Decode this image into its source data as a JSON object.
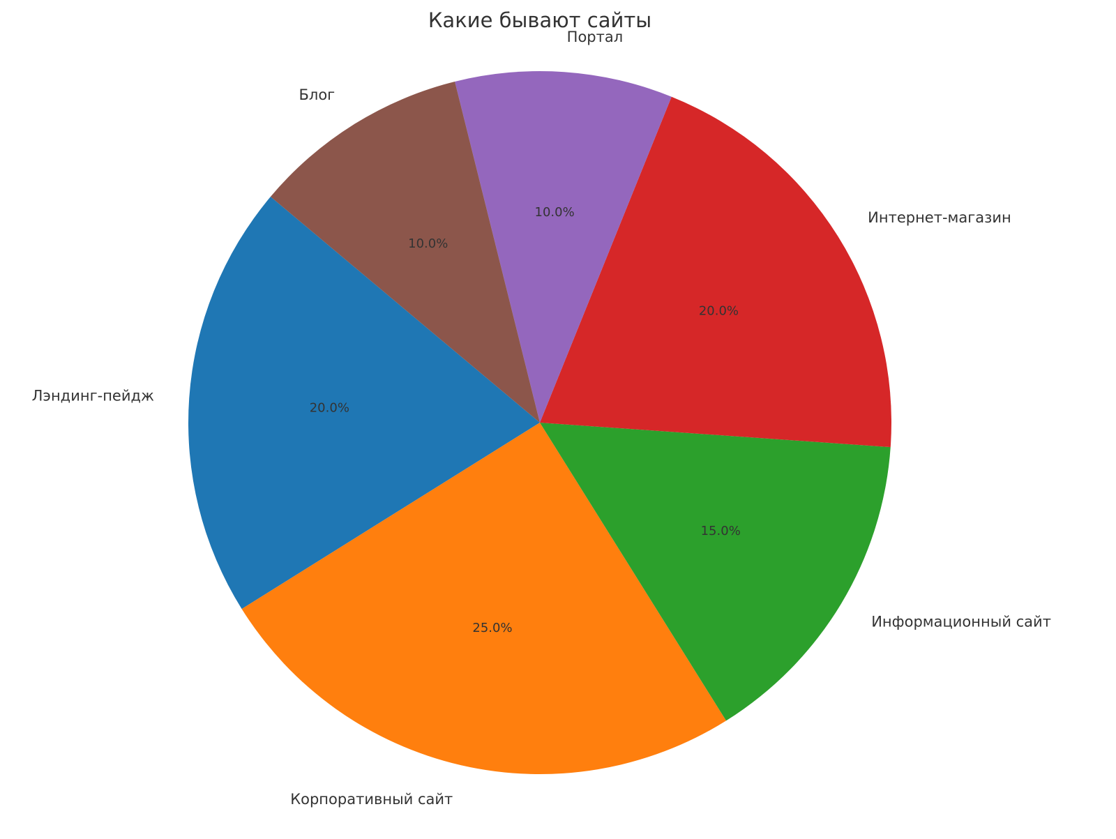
{
  "chart_data": {
    "type": "pie",
    "title": "Какие бывают сайты",
    "start_angle_deg": 140,
    "direction": "counterclockwise",
    "slices": [
      {
        "label": "Лэндинг-пейдж",
        "value": 20,
        "pct_label": "20.0%",
        "color": "#1f77b4"
      },
      {
        "label": "Корпоративный сайт",
        "value": 25,
        "pct_label": "25.0%",
        "color": "#ff7f0e"
      },
      {
        "label": "Информационный сайт",
        "value": 15,
        "pct_label": "15.0%",
        "color": "#2ca02c"
      },
      {
        "label": "Интернет-магазин",
        "value": 20,
        "pct_label": "20.0%",
        "color": "#d62728"
      },
      {
        "label": "Портал",
        "value": 10,
        "pct_label": "10.0%",
        "color": "#9467bd"
      },
      {
        "label": "Блог",
        "value": 10,
        "pct_label": "10.0%",
        "color": "#8c564b"
      }
    ]
  }
}
